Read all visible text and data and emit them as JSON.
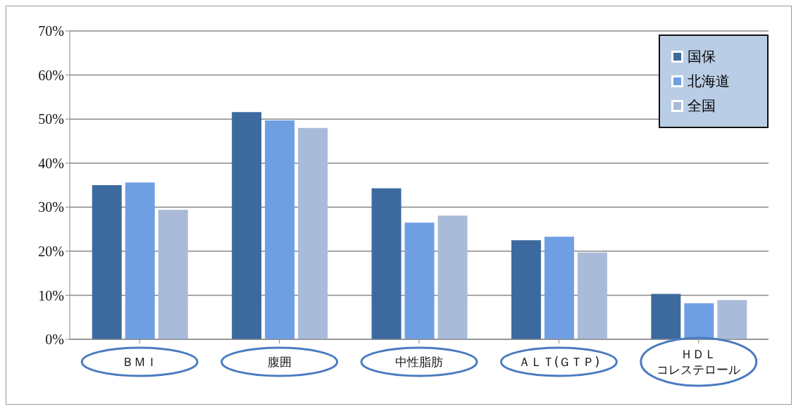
{
  "chart_data": {
    "type": "bar",
    "categories": [
      "ＢＭＩ",
      "腹囲",
      "中性脂肪",
      "ＡＬＴ(ＧＴＰ)",
      "ＨＤＬコレステロール"
    ],
    "series": [
      {
        "name": "国保",
        "color": "#3d6a9e",
        "values": [
          35.0,
          51.6,
          34.3,
          22.5,
          10.3
        ]
      },
      {
        "name": "北海道",
        "color": "#6f9fe3",
        "values": [
          35.6,
          49.7,
          26.5,
          23.3,
          8.2
        ]
      },
      {
        "name": "全国",
        "color": "#a9bbd9",
        "values": [
          29.4,
          48.0,
          28.1,
          19.7,
          8.9
        ]
      }
    ],
    "ylim": [
      0,
      70
    ],
    "yticks": [
      {
        "value": 0,
        "label": "0%"
      },
      {
        "value": 10,
        "label": "10%"
      },
      {
        "value": 20,
        "label": "20%"
      },
      {
        "value": 30,
        "label": "30%"
      },
      {
        "value": 40,
        "label": "40%"
      },
      {
        "value": 50,
        "label": "50%"
      },
      {
        "value": 60,
        "label": "60%"
      },
      {
        "value": 70,
        "label": "70%"
      }
    ],
    "grid": "y",
    "legend": "top right"
  }
}
